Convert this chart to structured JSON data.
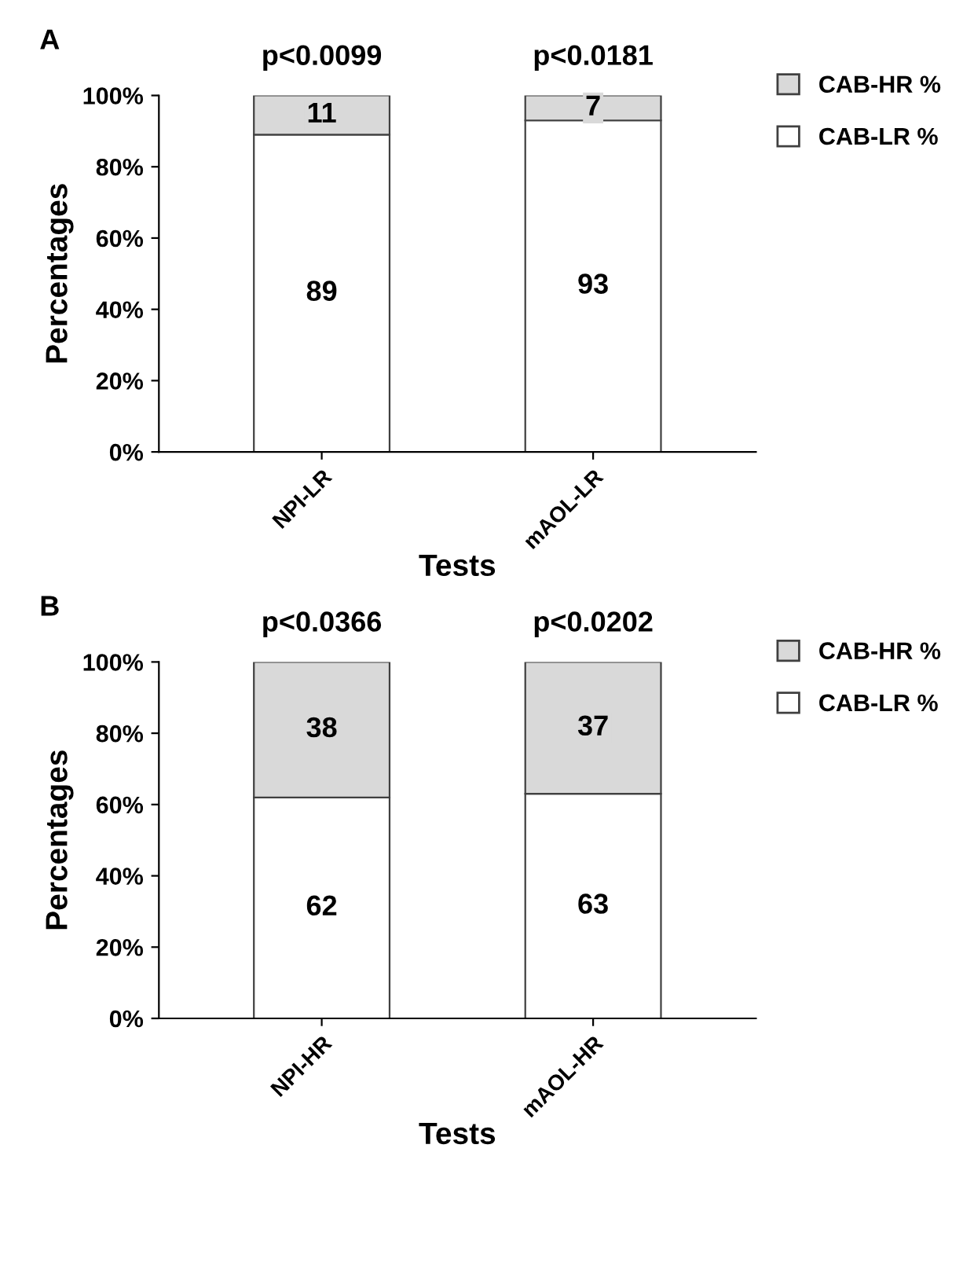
{
  "chart_data": [
    {
      "type": "bar",
      "title": "A",
      "xlabel": "Tests",
      "ylabel": "Percentages",
      "categories": [
        "NPI-LR",
        "mAOL-LR"
      ],
      "stacked": true,
      "series": [
        {
          "name": "CAB-LR %",
          "color": "#ffffff",
          "values": [
            89,
            93
          ]
        },
        {
          "name": "CAB-HR %",
          "color": "#d9d9d9",
          "values": [
            11,
            7
          ]
        }
      ],
      "ylim": [
        0,
        100
      ],
      "yticks": [
        {
          "value": 0,
          "label": "0%"
        },
        {
          "value": 20,
          "label": "20%"
        },
        {
          "value": 40,
          "label": "40%"
        },
        {
          "value": 60,
          "label": "60%"
        },
        {
          "value": 80,
          "label": "80%"
        },
        {
          "value": 100,
          "label": "100%"
        }
      ],
      "annotations": [
        {
          "text": "p<0.0099",
          "x": "NPI-LR",
          "y": 100
        },
        {
          "text": "p<0.0181",
          "x": "mAOL-LR",
          "y": 100
        }
      ],
      "data_labels": true,
      "legend": "top right",
      "grid": false
    },
    {
      "type": "bar",
      "title": "B",
      "xlabel": "Tests",
      "ylabel": "Percentages",
      "categories": [
        "NPI-HR",
        "mAOL-HR"
      ],
      "stacked": true,
      "series": [
        {
          "name": "CAB-LR %",
          "color": "#ffffff",
          "values": [
            62,
            63
          ]
        },
        {
          "name": "CAB-HR %",
          "color": "#d9d9d9",
          "values": [
            38,
            37
          ]
        }
      ],
      "ylim": [
        0,
        100
      ],
      "yticks": [
        {
          "value": 0,
          "label": "0%"
        },
        {
          "value": 20,
          "label": "20%"
        },
        {
          "value": 40,
          "label": "40%"
        },
        {
          "value": 60,
          "label": "60%"
        },
        {
          "value": 80,
          "label": "80%"
        },
        {
          "value": 100,
          "label": "100%"
        }
      ],
      "annotations": [
        {
          "text": "p<0.0366",
          "x": "NPI-HR",
          "y": 100
        },
        {
          "text": "p<0.0202",
          "x": "mAOL-HR",
          "y": 100
        }
      ],
      "data_labels": true,
      "legend": "top right",
      "grid": false
    }
  ]
}
